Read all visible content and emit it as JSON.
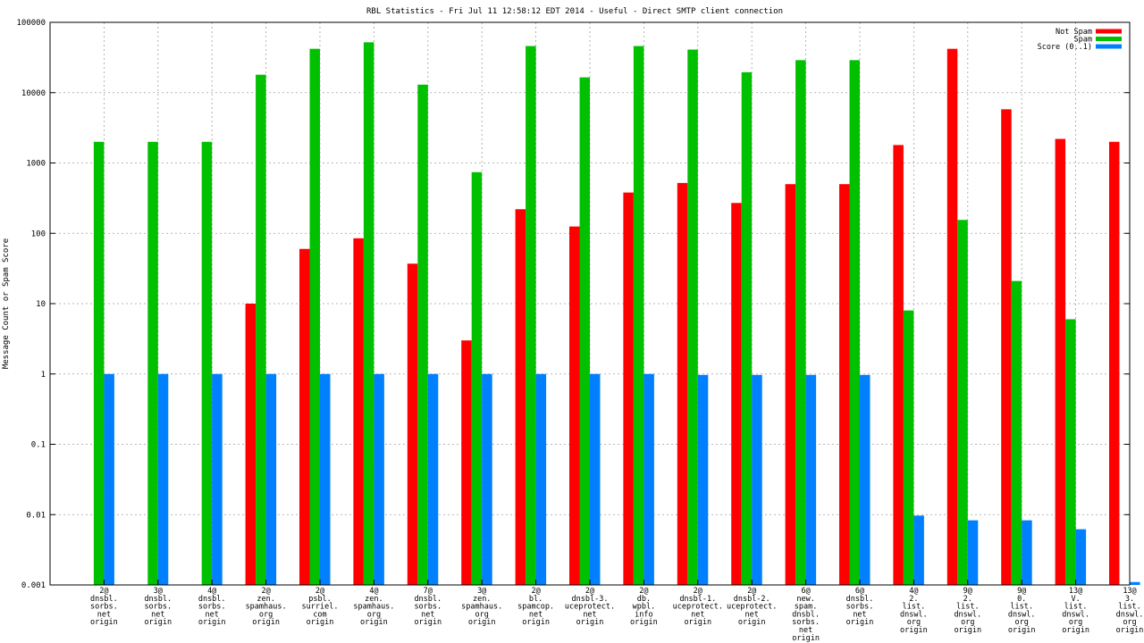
{
  "chart_data": {
    "type": "bar",
    "title": "RBL Statistics - Fri Jul 11 12:58:12 EDT 2014 - Useful - Direct SMTP client connection",
    "xlabel": "",
    "ylabel": "Message Count or Spam Score",
    "yscale": "log",
    "ylim": [
      0.001,
      100000
    ],
    "yticks": [
      "0.001",
      "0.01",
      "0.1",
      "1",
      "10",
      "100",
      "1000",
      "10000",
      "100000"
    ],
    "ytick_values": [
      0.001,
      0.01,
      0.1,
      1,
      10,
      100,
      1000,
      10000,
      100000
    ],
    "grid": true,
    "legend_position": "top-right",
    "colors": {
      "Not Spam": "#ff0000",
      "Spam": "#00c000",
      "Score (0..1)": "#0080ff",
      "grid": "#a0a0a0"
    },
    "categories": [
      [
        "2@",
        "dnsbl.",
        "sorbs.",
        "net",
        "origin"
      ],
      [
        "3@",
        "dnsbl.",
        "sorbs.",
        "net",
        "origin"
      ],
      [
        "4@",
        "dnsbl.",
        "sorbs.",
        "net",
        "origin"
      ],
      [
        "2@",
        "zen.",
        "spamhaus.",
        "org",
        "origin"
      ],
      [
        "2@",
        "psbl.",
        "surriel.",
        "com",
        "origin"
      ],
      [
        "4@",
        "zen.",
        "spamhaus.",
        "org",
        "origin"
      ],
      [
        "7@",
        "dnsbl.",
        "sorbs.",
        "net",
        "origin"
      ],
      [
        "3@",
        "zen.",
        "spamhaus.",
        "org",
        "origin"
      ],
      [
        "2@",
        "bl.",
        "spamcop.",
        "net",
        "origin"
      ],
      [
        "2@",
        "dnsbl-3.",
        "uceprotect.",
        "net",
        "origin"
      ],
      [
        "2@",
        "db.",
        "wpbl.",
        "info",
        "origin"
      ],
      [
        "2@",
        "dnsbl-1.",
        "uceprotect.",
        "net",
        "origin"
      ],
      [
        "2@",
        "dnsbl-2.",
        "uceprotect.",
        "net",
        "origin"
      ],
      [
        "6@",
        "new.",
        "spam.",
        "dnsbl.",
        "sorbs.",
        "net",
        "origin"
      ],
      [
        "6@",
        "dnsbl.",
        "sorbs.",
        "net",
        "origin"
      ],
      [
        "4@",
        "2.",
        "list.",
        "dnswl.",
        "org",
        "origin"
      ],
      [
        "9@",
        "2.",
        "list.",
        "dnswl.",
        "org",
        "origin"
      ],
      [
        "9@",
        "0.",
        "list.",
        "dnswl.",
        "org",
        "origin"
      ],
      [
        "13@",
        "V.",
        "list.",
        "dnswl.",
        "org",
        "origin"
      ],
      [
        "13@",
        "3.",
        "list.",
        "dnswl.",
        "org",
        "origin"
      ]
    ],
    "series": [
      {
        "name": "Not Spam",
        "values": [
          null,
          null,
          null,
          10,
          60,
          85,
          37,
          3,
          220,
          125,
          380,
          520,
          270,
          500,
          500,
          1800,
          42000,
          5800,
          2200,
          2000
        ]
      },
      {
        "name": "Spam",
        "values": [
          2000,
          2000,
          2000,
          18000,
          42000,
          52000,
          13000,
          740,
          46000,
          16500,
          46000,
          41000,
          19500,
          29000,
          29000,
          8,
          155,
          21,
          6,
          null
        ]
      },
      {
        "name": "Score (0..1)",
        "values": [
          1,
          1,
          1,
          1,
          1,
          1,
          1,
          1,
          1,
          1,
          1,
          0.97,
          0.97,
          0.97,
          0.97,
          0.0097,
          0.0083,
          0.0083,
          0.0062,
          0.0011
        ]
      }
    ]
  }
}
